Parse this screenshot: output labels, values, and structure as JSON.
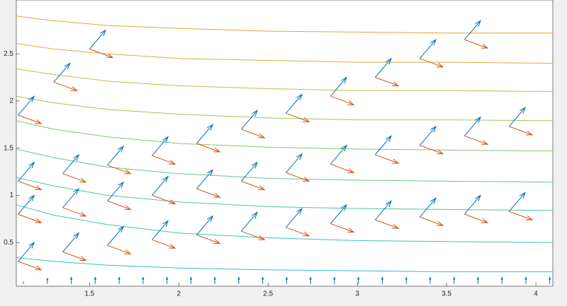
{
  "chart_data": {
    "type": "quiver",
    "xlim": [
      1.09,
      4.095
    ],
    "ylim": [
      0.037,
      3.07
    ],
    "xticks": [
      1.5,
      2,
      2.5,
      3,
      3.5,
      4
    ],
    "yticks": [
      0.5,
      1,
      1.5,
      2,
      2.5
    ],
    "contours": [
      {
        "color": "#2fbfcc",
        "x": [
          1.09,
          1.3,
          1.6,
          2,
          2.5,
          3,
          3.5,
          4.095
        ],
        "y": [
          0.34,
          0.3,
          0.26,
          0.23,
          0.21,
          0.2,
          0.19,
          0.19
        ]
      },
      {
        "color": "#3cc6b4",
        "x": [
          1.09,
          1.3,
          1.6,
          2,
          2.5,
          3,
          3.5,
          4.095
        ],
        "y": [
          0.9,
          0.79,
          0.69,
          0.6,
          0.55,
          0.52,
          0.51,
          0.5
        ]
      },
      {
        "color": "#4cc89c",
        "x": [
          1.09,
          1.3,
          1.6,
          2,
          2.5,
          3,
          3.5,
          4.095
        ],
        "y": [
          1.19,
          1.1,
          1.0,
          0.93,
          0.88,
          0.86,
          0.85,
          0.84
        ]
      },
      {
        "color": "#62c884",
        "x": [
          1.09,
          1.3,
          1.6,
          2,
          2.5,
          3,
          3.5,
          4.095
        ],
        "y": [
          1.49,
          1.4,
          1.3,
          1.23,
          1.18,
          1.16,
          1.15,
          1.14
        ]
      },
      {
        "color": "#82c866",
        "x": [
          1.09,
          1.3,
          1.6,
          2,
          2.5,
          3,
          3.5,
          4.095
        ],
        "y": [
          1.79,
          1.7,
          1.62,
          1.55,
          1.51,
          1.49,
          1.48,
          1.47
        ]
      },
      {
        "color": "#a4c650",
        "x": [
          1.09,
          1.3,
          1.6,
          2,
          2.5,
          3,
          3.5,
          4.095
        ],
        "y": [
          2.05,
          1.98,
          1.91,
          1.86,
          1.82,
          1.8,
          1.8,
          1.79
        ]
      },
      {
        "color": "#c4bc44",
        "x": [
          1.09,
          1.3,
          1.6,
          2,
          2.5,
          3,
          3.5,
          4.095
        ],
        "y": [
          2.34,
          2.28,
          2.21,
          2.16,
          2.13,
          2.11,
          2.11,
          2.1
        ]
      },
      {
        "color": "#dcae3a",
        "x": [
          1.09,
          1.3,
          1.6,
          2,
          2.5,
          3,
          3.5,
          4.095
        ],
        "y": [
          2.61,
          2.55,
          2.5,
          2.45,
          2.43,
          2.41,
          2.41,
          2.4
        ]
      },
      {
        "color": "#eca034",
        "x": [
          1.09,
          1.3,
          1.6,
          2,
          2.5,
          3,
          3.5,
          4.095
        ],
        "y": [
          2.9,
          2.85,
          2.8,
          2.77,
          2.74,
          2.73,
          2.72,
          2.72
        ]
      }
    ],
    "arrows": [
      {
        "color": "#0072bd",
        "x": [
          1.1,
          1.35,
          1.6,
          1.85,
          2.1,
          2.35,
          2.6,
          2.85,
          3.1,
          3.35,
          3.6,
          3.85,
          1.1,
          1.35,
          1.6,
          1.85,
          2.1,
          2.35,
          2.6,
          2.85,
          3.1,
          3.35,
          3.6,
          3.85,
          1.1,
          1.35,
          1.6,
          1.85,
          2.1,
          2.35,
          2.6,
          2.85,
          3.1,
          3.35,
          3.6,
          1.1,
          1.3,
          1.5
        ],
        "y": [
          0.3,
          0.4,
          0.47,
          0.53,
          0.58,
          0.62,
          0.66,
          0.7,
          0.74,
          0.77,
          0.8,
          0.83,
          0.8,
          0.87,
          0.94,
          1.0,
          1.07,
          1.15,
          1.24,
          1.33,
          1.43,
          1.53,
          1.63,
          1.73,
          1.15,
          1.23,
          1.32,
          1.42,
          1.55,
          1.7,
          1.87,
          2.05,
          2.25,
          2.45,
          2.65,
          1.85,
          2.2,
          2.55
        ],
        "u": [
          0.09,
          0.09,
          0.09,
          0.09,
          0.09,
          0.09,
          0.09,
          0.09,
          0.09,
          0.09,
          0.09,
          0.09,
          0.09,
          0.09,
          0.09,
          0.09,
          0.09,
          0.09,
          0.09,
          0.09,
          0.09,
          0.09,
          0.09,
          0.09,
          0.09,
          0.09,
          0.09,
          0.09,
          0.09,
          0.09,
          0.09,
          0.09,
          0.09,
          0.09,
          0.09,
          0.09,
          0.09,
          0.09
        ],
        "v": [
          0.2,
          0.2,
          0.2,
          0.2,
          0.2,
          0.2,
          0.2,
          0.2,
          0.2,
          0.2,
          0.2,
          0.2,
          0.2,
          0.2,
          0.2,
          0.2,
          0.2,
          0.2,
          0.2,
          0.2,
          0.2,
          0.2,
          0.2,
          0.2,
          0.2,
          0.2,
          0.2,
          0.2,
          0.2,
          0.2,
          0.2,
          0.2,
          0.2,
          0.2,
          0.2,
          0.2,
          0.2,
          0.2
        ]
      },
      {
        "color": "#d95319",
        "x": [
          1.1,
          1.35,
          1.6,
          1.85,
          2.1,
          2.35,
          2.6,
          2.85,
          3.1,
          3.35,
          3.6,
          3.85,
          1.1,
          1.35,
          1.6,
          1.85,
          2.1,
          2.35,
          2.6,
          2.85,
          3.1,
          3.35,
          3.6,
          3.85,
          1.1,
          1.35,
          1.6,
          1.85,
          2.1,
          2.35,
          2.6,
          2.85,
          3.1,
          3.35,
          3.6,
          1.1,
          1.3,
          1.5
        ],
        "y": [
          0.3,
          0.4,
          0.47,
          0.53,
          0.58,
          0.62,
          0.66,
          0.7,
          0.74,
          0.77,
          0.8,
          0.83,
          0.8,
          0.87,
          0.94,
          1.0,
          1.07,
          1.15,
          1.24,
          1.33,
          1.43,
          1.53,
          1.63,
          1.73,
          1.15,
          1.23,
          1.32,
          1.42,
          1.55,
          1.7,
          1.87,
          2.05,
          2.25,
          2.45,
          2.65,
          1.85,
          2.2,
          2.55
        ],
        "u": [
          0.13,
          0.13,
          0.13,
          0.13,
          0.13,
          0.13,
          0.13,
          0.13,
          0.13,
          0.13,
          0.13,
          0.13,
          0.13,
          0.13,
          0.13,
          0.13,
          0.13,
          0.13,
          0.13,
          0.13,
          0.13,
          0.13,
          0.13,
          0.13,
          0.13,
          0.13,
          0.13,
          0.13,
          0.13,
          0.13,
          0.13,
          0.13,
          0.13,
          0.13,
          0.13,
          0.13,
          0.13,
          0.13
        ],
        "v": [
          -0.09,
          -0.09,
          -0.09,
          -0.09,
          -0.09,
          -0.09,
          -0.09,
          -0.09,
          -0.09,
          -0.09,
          -0.09,
          -0.09,
          -0.09,
          -0.09,
          -0.09,
          -0.09,
          -0.09,
          -0.09,
          -0.09,
          -0.09,
          -0.09,
          -0.09,
          -0.09,
          -0.09,
          -0.09,
          -0.09,
          -0.09,
          -0.09,
          -0.09,
          -0.09,
          -0.09,
          -0.09,
          -0.09,
          -0.09,
          -0.09,
          -0.09,
          -0.09,
          -0.09
        ]
      },
      {
        "color": "#0072bd",
        "x": [
          1.13,
          1.264,
          1.398,
          1.532,
          1.666,
          1.8,
          1.934,
          2.068,
          2.202,
          2.336,
          2.47,
          2.604,
          2.738,
          2.872,
          3.006,
          3.14,
          3.274,
          3.408,
          3.542,
          3.676,
          3.81,
          3.944,
          4.078
        ],
        "y": [
          0.06,
          0.06,
          0.06,
          0.06,
          0.06,
          0.06,
          0.06,
          0.06,
          0.06,
          0.06,
          0.06,
          0.06,
          0.06,
          0.06,
          0.06,
          0.06,
          0.06,
          0.06,
          0.06,
          0.06,
          0.06,
          0.06,
          0.06
        ],
        "u": [
          0,
          0,
          0,
          0,
          0,
          0,
          0,
          0,
          0,
          0,
          0,
          0,
          0,
          0,
          0,
          0,
          0,
          0,
          0,
          0,
          0,
          0,
          0
        ],
        "v": [
          0.02,
          0.06,
          0.07,
          0.07,
          0.07,
          0.07,
          0.07,
          0.07,
          0.07,
          0.07,
          0.07,
          0.07,
          0.07,
          0.07,
          0.07,
          0.07,
          0.07,
          0.07,
          0.07,
          0.07,
          0.07,
          0.07,
          0.07
        ]
      }
    ]
  }
}
